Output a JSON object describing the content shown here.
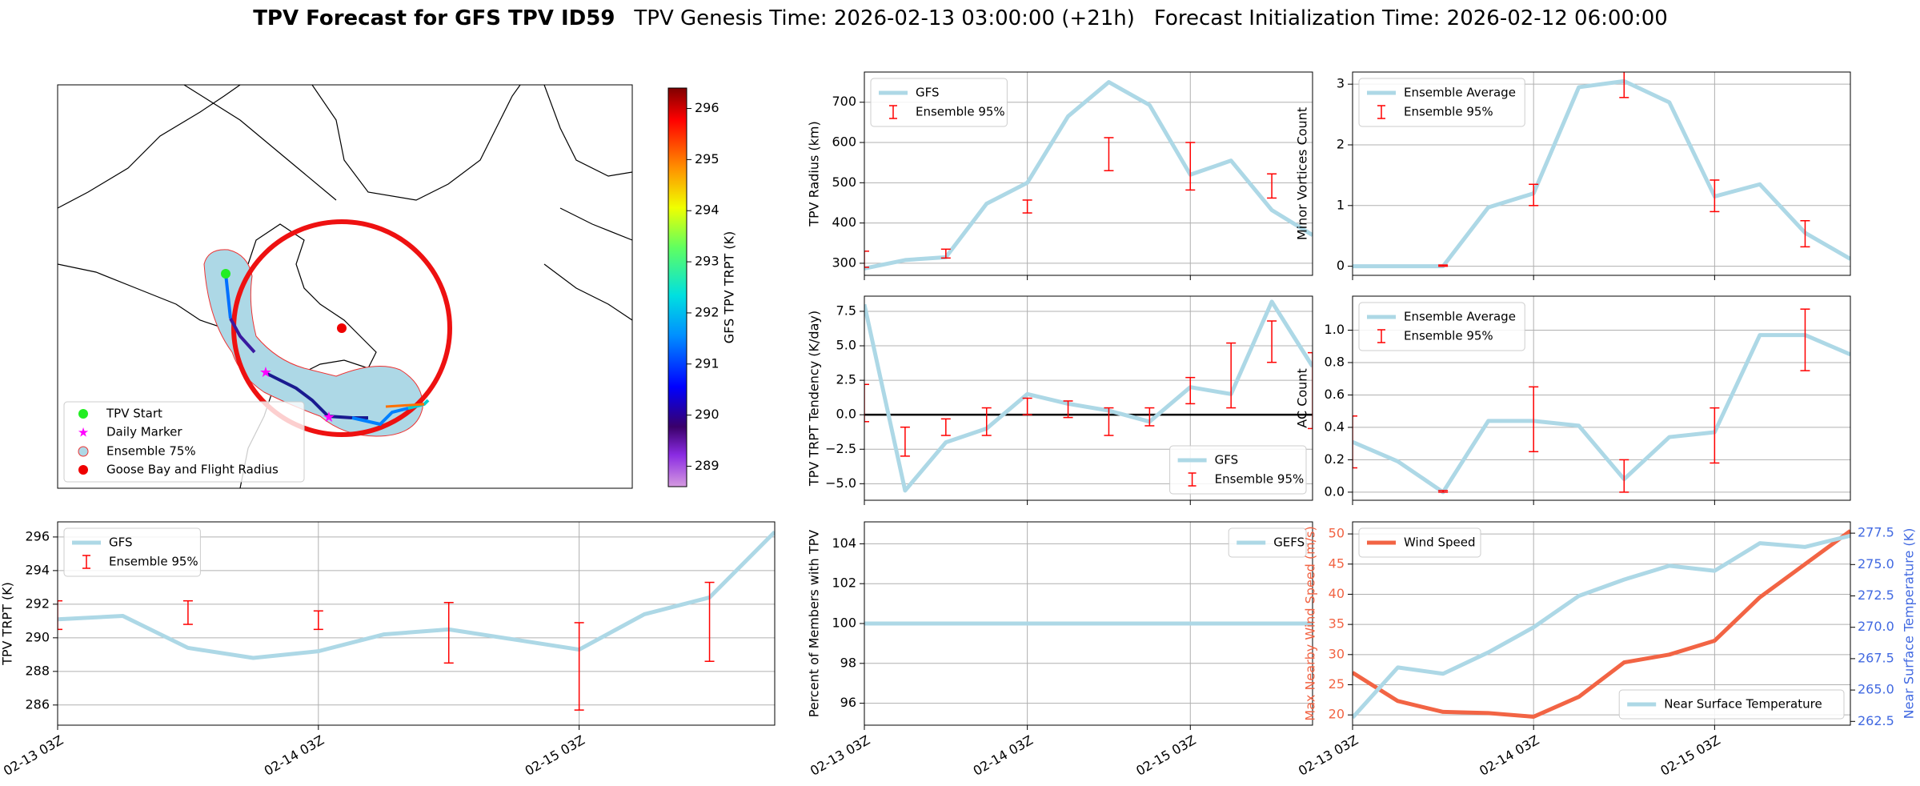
{
  "title_parts": [
    "TPV Forecast for GFS TPV ID59",
    "TPV Genesis Time: 2026-02-13 03:00:00 (+21h)",
    "Forecast Initialization Time: 2026-02-12 06:00:00"
  ],
  "chart_data": [
    {
      "type": "map",
      "legend": [
        "TPV Start",
        "Daily Marker",
        "Ensemble 75%",
        "Goose Bay and Flight Radius"
      ],
      "colorbar": {
        "label": "GFS TPV TRPT (K)",
        "clim": [
          288.6,
          296.4
        ],
        "ticks": [
          289,
          290,
          291,
          292,
          293,
          294,
          295,
          296
        ]
      }
    },
    {
      "type": "line",
      "ylabel": "TPV Radius (km)",
      "xlim": [
        0,
        66
      ],
      "xticks": [
        0,
        24,
        48
      ],
      "ylim": [
        270,
        775
      ],
      "yticks": [
        300,
        400,
        500,
        600,
        700
      ],
      "grid": true,
      "legend_loc": "upper left",
      "series": [
        {
          "name": "GFS",
          "color": "#add8e6",
          "x": [
            0,
            6,
            12,
            18,
            24,
            30,
            36,
            42,
            48,
            54,
            60,
            66
          ],
          "values": [
            287,
            308,
            315,
            448,
            500,
            665,
            750,
            693,
            520,
            555,
            432,
            370
          ]
        },
        {
          "name": "Ensemble 95%",
          "color": "#ff0000",
          "type": "errorbar",
          "x": [
            0,
            12,
            24,
            36,
            48,
            60
          ],
          "low": [
            290,
            313,
            425,
            530,
            482,
            462
          ],
          "high": [
            330,
            335,
            457,
            612,
            600,
            522
          ]
        }
      ]
    },
    {
      "type": "line",
      "ylabel": "TPV TRPT Tendency (K/day)",
      "xlim": [
        0,
        66
      ],
      "xticks": [
        0,
        24,
        48
      ],
      "ylim": [
        -6.2,
        8.6
      ],
      "yticks": [
        {
          "value": -5,
          "label": "−5.0"
        },
        {
          "value": -2.5,
          "label": "−2.5"
        },
        {
          "value": 0,
          "label": "0.0"
        },
        2.5,
        {
          "value": 5,
          "label": "5.0"
        },
        7.5
      ],
      "grid": true,
      "hline": 0,
      "legend_loc": "lower right",
      "series": [
        {
          "name": "GFS",
          "color": "#add8e6",
          "x": [
            0,
            6,
            12,
            18,
            24,
            30,
            36,
            42,
            48,
            54,
            60,
            66
          ],
          "values": [
            8.0,
            -5.5,
            -2.0,
            -1.0,
            1.5,
            0.8,
            0.3,
            -0.5,
            2.0,
            1.5,
            8.2,
            3.5
          ]
        },
        {
          "name": "Ensemble 95%",
          "color": "#ff0000",
          "type": "errorbar",
          "x": [
            0,
            6,
            12,
            18,
            24,
            30,
            36,
            42,
            48,
            54,
            60,
            66
          ],
          "low": [
            -0.5,
            -3.0,
            -1.5,
            -1.5,
            0.0,
            -0.2,
            -1.5,
            -0.8,
            0.8,
            0.5,
            3.8,
            -1.0
          ],
          "high": [
            2.2,
            -0.9,
            -0.3,
            0.5,
            1.2,
            1.0,
            0.5,
            0.5,
            2.7,
            5.2,
            6.8,
            4.5
          ]
        }
      ]
    },
    {
      "type": "line",
      "ylabel": "Percent of Members with TPV",
      "xlim": [
        0,
        66
      ],
      "xticks": [
        {
          "value": 0,
          "label": "02-13 03Z"
        },
        {
          "value": 24,
          "label": "02-14 03Z"
        },
        {
          "value": 48,
          "label": "02-15 03Z"
        }
      ],
      "ylim": [
        94.9,
        105.1
      ],
      "yticks": [
        96,
        98,
        100,
        102,
        104
      ],
      "grid": true,
      "legend_loc": "upper right",
      "series": [
        {
          "name": "GEFS",
          "color": "#add8e6",
          "x": [
            0,
            6,
            12,
            18,
            24,
            30,
            36,
            42,
            48,
            54,
            60,
            66
          ],
          "values": [
            100,
            100,
            100,
            100,
            100,
            100,
            100,
            100,
            100,
            100,
            100,
            100
          ]
        }
      ]
    },
    {
      "type": "line",
      "ylabel": "Minor Vortices Count",
      "xlim": [
        0,
        66
      ],
      "xticks": [
        0,
        24,
        48
      ],
      "ylim": [
        -0.15,
        3.2
      ],
      "yticks": [
        0,
        1,
        2,
        3
      ],
      "grid": true,
      "legend_loc": "upper left",
      "series": [
        {
          "name": "Ensemble Average",
          "color": "#add8e6",
          "x": [
            0,
            6,
            12,
            18,
            24,
            30,
            36,
            42,
            48,
            54,
            60,
            66
          ],
          "values": [
            0,
            0,
            0,
            0.97,
            1.2,
            2.95,
            3.05,
            2.7,
            1.15,
            1.35,
            0.55,
            0.12
          ]
        },
        {
          "name": "Ensemble 95%",
          "color": "#ff0000",
          "type": "errorbar",
          "x": [
            12,
            24,
            36,
            48,
            60
          ],
          "low": [
            0,
            1.0,
            2.78,
            0.9,
            0.32
          ],
          "high": [
            0.02,
            1.35,
            3.32,
            1.42,
            0.75
          ]
        }
      ]
    },
    {
      "type": "line",
      "ylabel": "AC Count",
      "xlim": [
        0,
        66
      ],
      "xticks": [
        0,
        24,
        48
      ],
      "ylim": [
        -0.05,
        1.21
      ],
      "yticks": [
        {
          "value": 0,
          "label": "0.0"
        },
        0.2,
        0.4,
        0.6,
        0.8,
        {
          "value": 1,
          "label": "1.0"
        }
      ],
      "grid": true,
      "legend_loc": "upper left",
      "series": [
        {
          "name": "Ensemble Average",
          "color": "#add8e6",
          "x": [
            0,
            6,
            12,
            18,
            24,
            30,
            36,
            42,
            48,
            54,
            60,
            66
          ],
          "values": [
            0.31,
            0.19,
            0.0,
            0.44,
            0.44,
            0.41,
            0.08,
            0.34,
            0.37,
            0.97,
            0.97,
            0.85
          ]
        },
        {
          "name": "Ensemble 95%",
          "color": "#ff0000",
          "type": "errorbar",
          "x": [
            0,
            12,
            24,
            36,
            48,
            60
          ],
          "low": [
            0.15,
            0,
            0.25,
            0,
            0.18,
            0.75
          ],
          "high": [
            0.47,
            0.01,
            0.65,
            0.2,
            0.52,
            1.13
          ]
        }
      ]
    },
    {
      "type": "line",
      "ylabel": "Max Nearby Wind Speed (m/s)",
      "ylabel_color": "#f26444",
      "y2label": "Near Surface Temperature (K)",
      "y2label_color": "#4169e1",
      "xlim": [
        0,
        66
      ],
      "xticks": [
        {
          "value": 0,
          "label": "02-13 03Z"
        },
        {
          "value": 24,
          "label": "02-14 03Z"
        },
        {
          "value": 48,
          "label": "02-15 03Z"
        }
      ],
      "ylim": [
        18.3,
        52
      ],
      "yticks": [
        20,
        25,
        30,
        35,
        40,
        45,
        50
      ],
      "y2lim": [
        262.2,
        278.4
      ],
      "y2ticks": [
        262.5,
        {
          "value": 265,
          "label": "265.0"
        },
        267.5,
        {
          "value": 270,
          "label": "270.0"
        },
        272.5,
        {
          "value": 275,
          "label": "275.0"
        },
        277.5
      ],
      "grid": true,
      "series": [
        {
          "name": "Wind Speed",
          "color": "#f26444",
          "legend_loc": "upper left",
          "x": [
            0,
            6,
            12,
            18,
            24,
            30,
            36,
            42,
            48,
            54,
            60,
            66
          ],
          "values": [
            27,
            22.3,
            20.5,
            20.3,
            19.7,
            23,
            28.7,
            30,
            32.3,
            39.5,
            45,
            50.5
          ]
        },
        {
          "name": "Near Surface Temperature",
          "color": "#add8e6",
          "axis": "y2",
          "legend_loc": "lower right",
          "x": [
            0,
            6,
            12,
            18,
            24,
            30,
            36,
            42,
            48,
            54,
            60,
            66
          ],
          "values": [
            262.8,
            266.8,
            266.3,
            268.0,
            270.0,
            272.5,
            273.8,
            274.9,
            274.5,
            276.7,
            276.4,
            277.3
          ]
        }
      ]
    },
    {
      "type": "line",
      "ylabel": "TPV TRPT (K)",
      "xlim": [
        0,
        66
      ],
      "xticks": [
        {
          "value": 0,
          "label": "02-13 03Z"
        },
        {
          "value": 24,
          "label": "02-14 03Z"
        },
        {
          "value": 48,
          "label": "02-15 03Z"
        }
      ],
      "ylim": [
        284.8,
        296.9
      ],
      "yticks": [
        286,
        288,
        290,
        292,
        294,
        296
      ],
      "grid": true,
      "legend_loc": "upper left",
      "series": [
        {
          "name": "GFS",
          "color": "#add8e6",
          "x": [
            0,
            6,
            12,
            18,
            24,
            30,
            36,
            42,
            48,
            54,
            60,
            66
          ],
          "values": [
            291.1,
            291.3,
            289.4,
            288.8,
            289.2,
            290.2,
            290.5,
            289.9,
            289.3,
            291.4,
            292.4,
            296.3
          ]
        },
        {
          "name": "Ensemble 95%",
          "color": "#ff0000",
          "type": "errorbar",
          "x": [
            0,
            12,
            24,
            36,
            48,
            60
          ],
          "low": [
            290.5,
            290.8,
            290.5,
            288.5,
            285.7,
            288.6
          ],
          "high": [
            292.2,
            292.2,
            291.6,
            292.1,
            290.9,
            293.3
          ]
        }
      ]
    }
  ]
}
